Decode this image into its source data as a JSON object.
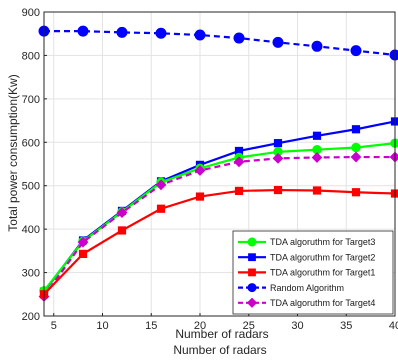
{
  "chart_data": {
    "type": "line",
    "title": "",
    "xlabel": "Number of radars",
    "xlabel_repeat": "Number of radars",
    "ylabel": "Total power consumption(Kw)",
    "xlim": [
      4,
      40
    ],
    "ylim": [
      200,
      900
    ],
    "xticks": [
      5,
      10,
      15,
      20,
      25,
      30,
      35,
      40
    ],
    "yticks": [
      200,
      300,
      400,
      500,
      600,
      700,
      800,
      900
    ],
    "grid": true,
    "legend_position": "lower-right",
    "x": [
      4,
      8,
      12,
      16,
      20,
      24,
      28,
      32,
      36,
      40
    ],
    "series": [
      {
        "name": "TDA algoruthm for Target3",
        "color": "#00ff00",
        "line_style": "solid",
        "marker": "circle",
        "values": [
          258,
          372,
          440,
          508,
          540,
          565,
          578,
          583,
          588,
          598
        ]
      },
      {
        "name": "TDA algoruthm for Target2",
        "color": "#0000ff",
        "line_style": "solid",
        "marker": "square",
        "values": [
          256,
          374,
          442,
          510,
          548,
          580,
          598,
          615,
          630,
          648
        ]
      },
      {
        "name": "TDA algoruthm for Target1",
        "color": "#ff0000",
        "line_style": "solid",
        "marker": "square",
        "values": [
          250,
          343,
          397,
          447,
          475,
          488,
          490,
          489,
          485,
          482
        ]
      },
      {
        "name": "Random Algorithm",
        "color": "#0000ff",
        "line_style": "dashed",
        "marker": "circle",
        "values": [
          856,
          856,
          853,
          851,
          847,
          840,
          830,
          821,
          811,
          801
        ]
      },
      {
        "name": "TDA algoruthm for Target4",
        "color": "#cc00cc",
        "line_style": "dashed",
        "marker": "diamond",
        "values": [
          245,
          370,
          438,
          502,
          535,
          555,
          563,
          565,
          566,
          566
        ]
      }
    ]
  }
}
